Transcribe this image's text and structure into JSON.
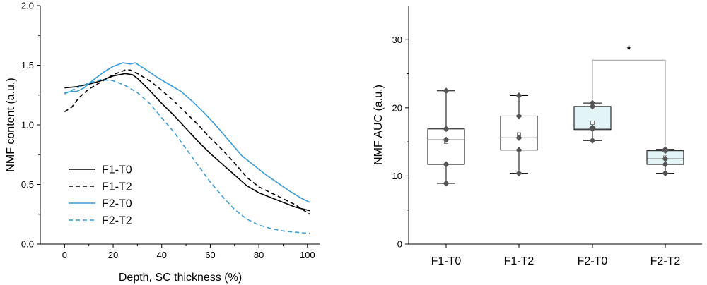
{
  "chart_data": [
    {
      "type": "line",
      "xlabel": "Depth, SC thickness (%)",
      "ylabel": "NMF content (a.u.)",
      "xlim": [
        -10,
        105
      ],
      "ylim": [
        0,
        2.0
      ],
      "xticks": [
        "0",
        "20",
        "40",
        "60",
        "80",
        "100"
      ],
      "yticks": [
        "0.0",
        "0.5",
        "1.0",
        "1.5",
        "2.0"
      ],
      "legend_position": "bottom-left",
      "series": [
        {
          "name": "F1-T0",
          "color": "#000000",
          "dash": "solid",
          "points": [
            [
              0,
              1.31
            ],
            [
              5,
              1.32
            ],
            [
              10,
              1.34
            ],
            [
              15,
              1.37
            ],
            [
              20,
              1.41
            ],
            [
              25,
              1.43
            ],
            [
              28,
              1.42
            ],
            [
              30,
              1.39
            ],
            [
              35,
              1.29
            ],
            [
              40,
              1.18
            ],
            [
              45,
              1.08
            ],
            [
              50,
              0.97
            ],
            [
              55,
              0.86
            ],
            [
              60,
              0.76
            ],
            [
              65,
              0.67
            ],
            [
              70,
              0.58
            ],
            [
              75,
              0.49
            ],
            [
              80,
              0.43
            ],
            [
              85,
              0.39
            ],
            [
              90,
              0.35
            ],
            [
              95,
              0.31
            ],
            [
              101,
              0.28
            ]
          ]
        },
        {
          "name": "F1-T2",
          "color": "#000000",
          "dash": "dashed",
          "points": [
            [
              0,
              1.11
            ],
            [
              3,
              1.15
            ],
            [
              6,
              1.23
            ],
            [
              10,
              1.3
            ],
            [
              15,
              1.36
            ],
            [
              20,
              1.42
            ],
            [
              25,
              1.46
            ],
            [
              27,
              1.46
            ],
            [
              30,
              1.43
            ],
            [
              35,
              1.37
            ],
            [
              40,
              1.29
            ],
            [
              45,
              1.2
            ],
            [
              50,
              1.1
            ],
            [
              55,
              1.0
            ],
            [
              60,
              0.89
            ],
            [
              65,
              0.79
            ],
            [
              70,
              0.68
            ],
            [
              75,
              0.56
            ],
            [
              80,
              0.48
            ],
            [
              85,
              0.43
            ],
            [
              90,
              0.38
            ],
            [
              95,
              0.33
            ],
            [
              101,
              0.25
            ]
          ]
        },
        {
          "name": "F2-T0",
          "color": "#3a9bd5",
          "dash": "solid",
          "points": [
            [
              0,
              1.27
            ],
            [
              3,
              1.28
            ],
            [
              5,
              1.28
            ],
            [
              8,
              1.31
            ],
            [
              12,
              1.38
            ],
            [
              16,
              1.44
            ],
            [
              20,
              1.49
            ],
            [
              24,
              1.52
            ],
            [
              27,
              1.51
            ],
            [
              29,
              1.52
            ],
            [
              33,
              1.47
            ],
            [
              38,
              1.4
            ],
            [
              43,
              1.34
            ],
            [
              48,
              1.28
            ],
            [
              53,
              1.19
            ],
            [
              58,
              1.09
            ],
            [
              63,
              0.98
            ],
            [
              68,
              0.86
            ],
            [
              73,
              0.74
            ],
            [
              78,
              0.66
            ],
            [
              83,
              0.58
            ],
            [
              88,
              0.51
            ],
            [
              93,
              0.44
            ],
            [
              97,
              0.39
            ],
            [
              101,
              0.35
            ]
          ]
        },
        {
          "name": "F2-T2",
          "color": "#3a9bd5",
          "dash": "dashed",
          "points": [
            [
              0,
              1.26
            ],
            [
              5,
              1.31
            ],
            [
              10,
              1.35
            ],
            [
              15,
              1.38
            ],
            [
              20,
              1.37
            ],
            [
              25,
              1.33
            ],
            [
              30,
              1.27
            ],
            [
              35,
              1.18
            ],
            [
              40,
              1.06
            ],
            [
              45,
              0.94
            ],
            [
              50,
              0.8
            ],
            [
              55,
              0.66
            ],
            [
              60,
              0.52
            ],
            [
              65,
              0.4
            ],
            [
              70,
              0.29
            ],
            [
              75,
              0.21
            ],
            [
              80,
              0.16
            ],
            [
              85,
              0.13
            ],
            [
              90,
              0.11
            ],
            [
              95,
              0.1
            ],
            [
              101,
              0.09
            ]
          ]
        }
      ]
    },
    {
      "type": "box",
      "xlabel": "",
      "ylabel": "NMF AUC (a.u.)",
      "ylim": [
        0,
        35
      ],
      "categories": [
        "F1-T0",
        "F1-T2",
        "F2-T0",
        "F2-T2"
      ],
      "yticks": [
        "0",
        "10",
        "20",
        "30"
      ],
      "fill": "#e3f4f6",
      "boxes": [
        {
          "name": "F1-T0",
          "whisker_low": 8.9,
          "q1": 11.7,
          "median": 15.3,
          "mean": 15.0,
          "q3": 16.9,
          "whisker_high": 22.5,
          "points": [
            22.5,
            16.9,
            15.3,
            11.7,
            8.9
          ],
          "filled": false
        },
        {
          "name": "F1-T2",
          "whisker_low": 10.4,
          "q1": 13.8,
          "median": 15.6,
          "mean": 16.1,
          "q3": 18.8,
          "whisker_high": 21.8,
          "points": [
            21.8,
            18.8,
            15.6,
            13.8,
            10.4
          ],
          "filled": false
        },
        {
          "name": "F2-T0",
          "whisker_low": 15.2,
          "q1": 16.8,
          "median": 17.0,
          "mean": 17.8,
          "q3": 20.2,
          "whisker_high": 20.7,
          "points": [
            20.7,
            20.2,
            17.1,
            16.9,
            15.2
          ],
          "filled": true
        },
        {
          "name": "F2-T2",
          "whisker_low": 10.4,
          "q1": 11.7,
          "median": 12.5,
          "mean": 12.7,
          "q3": 13.7,
          "whisker_high": 13.9,
          "points": [
            13.9,
            13.7,
            12.5,
            11.7,
            10.4
          ],
          "filled": true
        }
      ],
      "significance": {
        "from": "F2-T0",
        "to": "F2-T2",
        "y": 27,
        "label": "*"
      }
    }
  ]
}
